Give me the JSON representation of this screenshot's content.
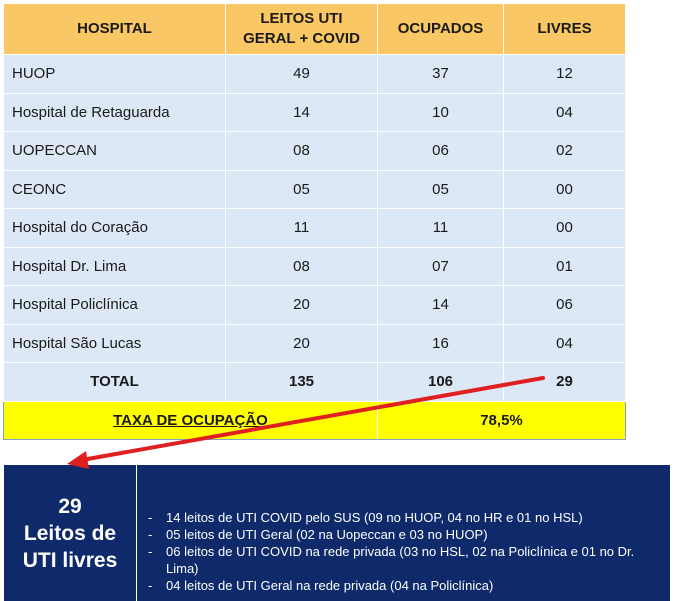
{
  "table": {
    "headers": [
      "HOSPITAL",
      "LEITOS UTI\nGERAL + COVID",
      "OCUPADOS",
      "LIVRES"
    ],
    "header_line1": "LEITOS UTI",
    "header_line2": "GERAL + COVID",
    "rows": [
      {
        "hospital": "HUOP",
        "leitos": "49",
        "ocupados": "37",
        "livres": "12"
      },
      {
        "hospital": "Hospital de Retaguarda",
        "leitos": "14",
        "ocupados": "10",
        "livres": "04"
      },
      {
        "hospital": "UOPECCAN",
        "leitos": "08",
        "ocupados": "06",
        "livres": "02"
      },
      {
        "hospital": "CEONC",
        "leitos": "05",
        "ocupados": "05",
        "livres": "00"
      },
      {
        "hospital": "Hospital do Coração",
        "leitos": "11",
        "ocupados": "11",
        "livres": "00"
      },
      {
        "hospital": "Hospital Dr. Lima",
        "leitos": "08",
        "ocupados": "07",
        "livres": "01"
      },
      {
        "hospital": "Hospital Policlínica",
        "leitos": "20",
        "ocupados": "14",
        "livres": "06"
      },
      {
        "hospital": "Hospital São Lucas",
        "leitos": "20",
        "ocupados": "16",
        "livres": "04"
      }
    ],
    "total": {
      "label": "TOTAL",
      "leitos": "135",
      "ocupados": "106",
      "livres": "29"
    },
    "taxa": {
      "label": "TAXA DE OCUPAÇÃO",
      "value": "78,5%"
    }
  },
  "info": {
    "count": "29",
    "line2": "Leitos de",
    "line3": "UTI livres",
    "items": [
      "14 leitos de UTI COVID pelo SUS (09 no HUOP, 04 no HR e 01 no HSL)",
      "05 leitos de UTI Geral (02 na Uopeccan e 03 no HUOP)",
      "06 leitos de UTI COVID na rede privada (03 no HSL, 02 na Policlínica e 01 no Dr. Lima)",
      "04 leitos de UTI Geral na rede privada (04 na Policlínica)"
    ],
    "dash": "-"
  },
  "colors": {
    "header_bg": "#f9c763",
    "row_bg": "#dde8f6",
    "taxa_bg": "#ffff00",
    "info_bg": "#0e2a6a",
    "arrow": "#e02020"
  }
}
